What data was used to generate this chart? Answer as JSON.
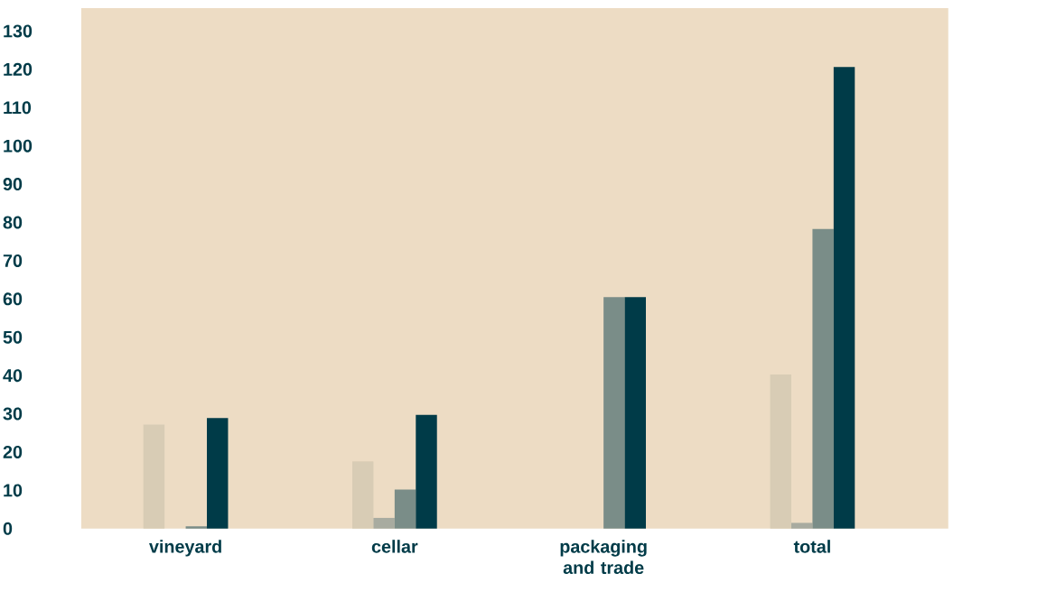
{
  "chart_data": {
    "type": "bar",
    "categories": [
      "vineyard",
      "cellar",
      "packaging and trade",
      "total"
    ],
    "series": [
      {
        "color": "#d8ccb5",
        "values": [
          27.2,
          17.6,
          null,
          40.3
        ]
      },
      {
        "color": "#a8aba0",
        "values": [
          null,
          2.8,
          null,
          1.5
        ]
      },
      {
        "color": "#7a8d88",
        "values": [
          0.6,
          10.2,
          60.5,
          78.3
        ]
      },
      {
        "color": "#003b48",
        "values": [
          28.9,
          29.7,
          60.5,
          120.6
        ]
      }
    ],
    "ylim": [
      0,
      136
    ],
    "yticks": [
      0,
      10,
      20,
      30,
      40,
      50,
      60,
      70,
      80,
      90,
      100,
      110,
      120,
      130
    ]
  }
}
